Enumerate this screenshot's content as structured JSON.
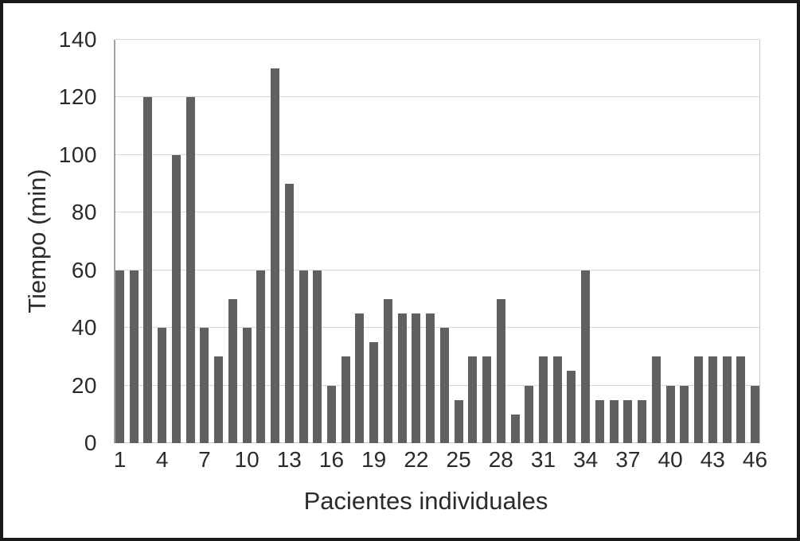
{
  "figure": {
    "border_color": "#1a1a1a",
    "background_color": "#ffffff"
  },
  "chart_data": {
    "type": "bar",
    "title": "",
    "xlabel": "Pacientes individuales",
    "ylabel": "Tiempo (min)",
    "categories": [
      1,
      2,
      3,
      4,
      5,
      6,
      7,
      8,
      9,
      10,
      11,
      12,
      13,
      14,
      15,
      16,
      17,
      18,
      19,
      20,
      21,
      22,
      23,
      24,
      25,
      26,
      27,
      28,
      29,
      30,
      31,
      32,
      33,
      34,
      35,
      36,
      37,
      38,
      39,
      40,
      41,
      42,
      43,
      44,
      45,
      46
    ],
    "values": [
      60,
      60,
      120,
      40,
      100,
      120,
      40,
      30,
      50,
      40,
      60,
      130,
      90,
      60,
      60,
      20,
      30,
      45,
      35,
      50,
      45,
      45,
      45,
      40,
      15,
      30,
      30,
      50,
      10,
      20,
      30,
      30,
      25,
      60,
      15,
      15,
      15,
      15,
      30,
      20,
      20,
      30,
      30,
      30,
      30,
      20
    ],
    "ylim": [
      0,
      140
    ],
    "y_ticks": [
      0,
      20,
      40,
      60,
      80,
      100,
      120,
      140
    ],
    "x_tick_labels": [
      "1",
      "4",
      "7",
      "10",
      "13",
      "16",
      "19",
      "22",
      "25",
      "28",
      "31",
      "34",
      "37",
      "40",
      "43",
      "46"
    ],
    "x_tick_step": 3,
    "grid": "horizontal",
    "legend": "none",
    "bar_color": "#606060",
    "gridline_color": "#d6d6d6",
    "baseline_color": "#c2c2c2",
    "text_color": "#2b2b2b"
  }
}
